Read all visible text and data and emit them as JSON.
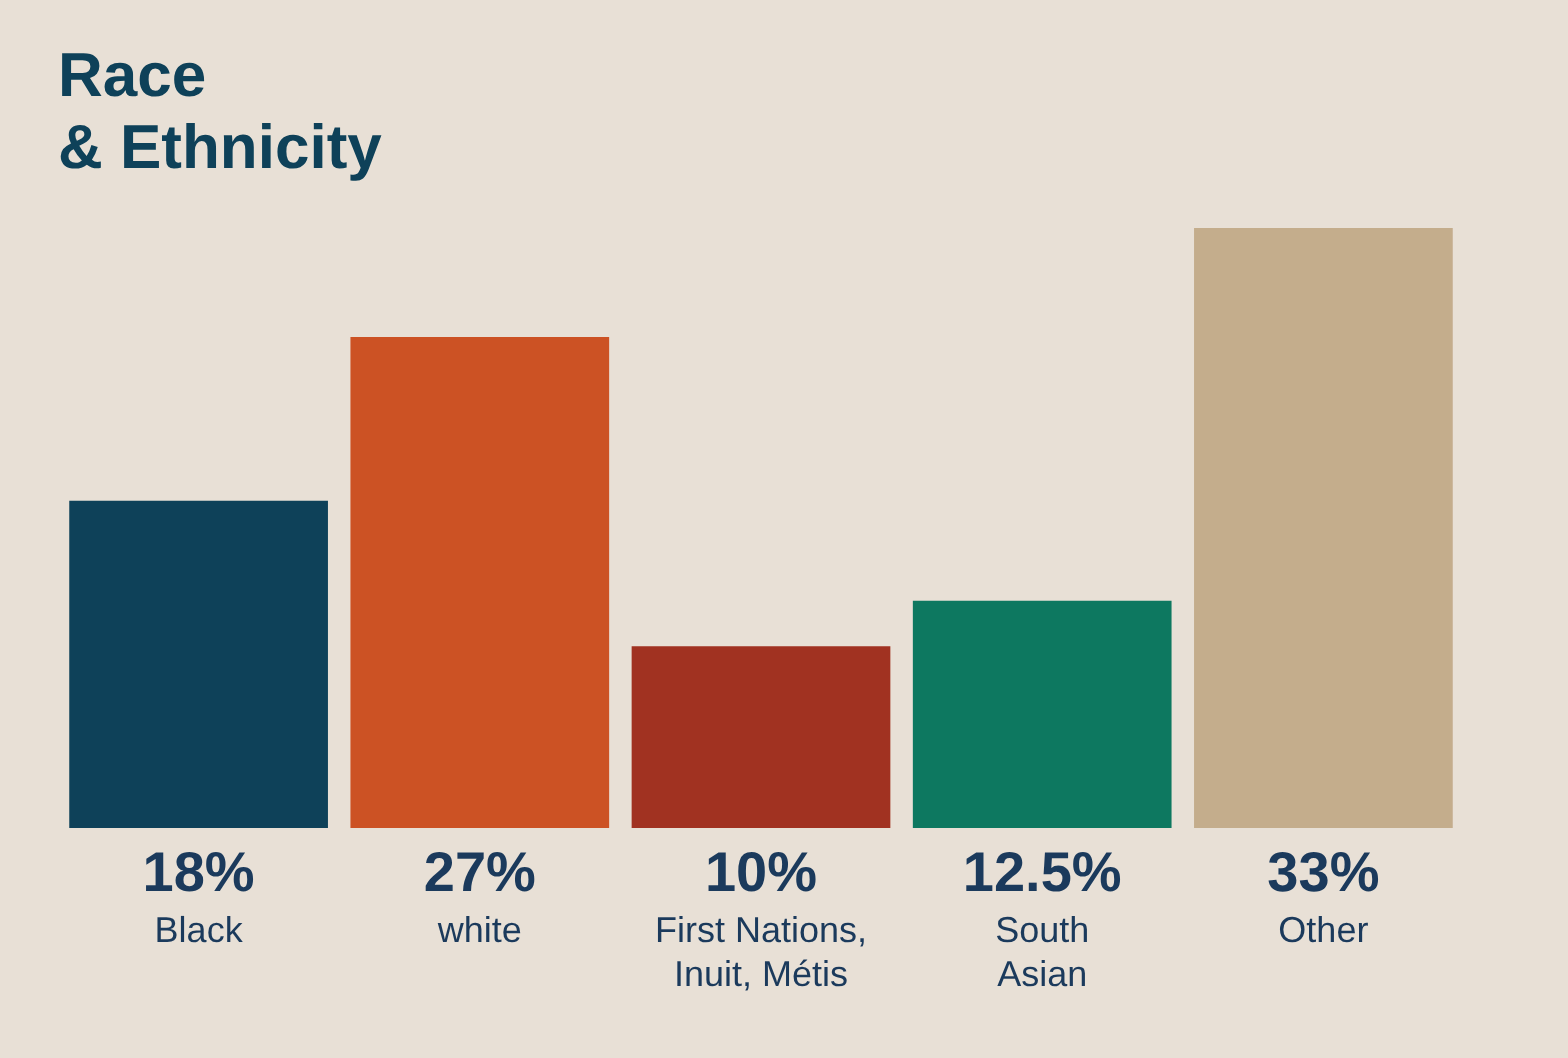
{
  "chart_data": {
    "type": "bar",
    "title": "Race\n& Ethnicity",
    "categories": [
      "Black",
      "white",
      "First Nations,\nInuit, Métis",
      "South\nAsian",
      "Other"
    ],
    "values": [
      18,
      27,
      10,
      12.5,
      33
    ],
    "colors": [
      "#0e4159",
      "#cc5224",
      "#a13221",
      "#0d7860",
      "#c4ad8c"
    ],
    "ylim": [
      0,
      33
    ],
    "value_labels": [
      "18%",
      "27%",
      "10%",
      "12.5%",
      "33%"
    ]
  }
}
